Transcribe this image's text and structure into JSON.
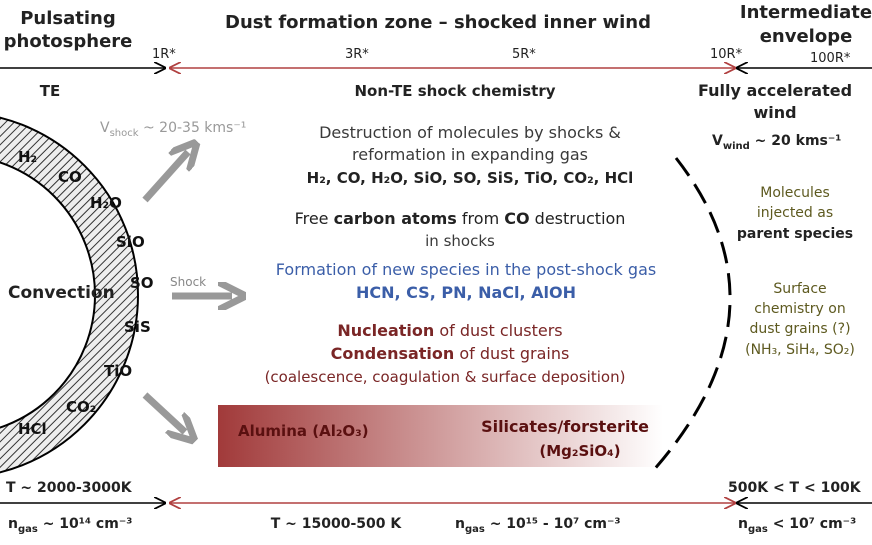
{
  "header": {
    "left": [
      "Pulsating",
      "photosphere"
    ],
    "title": "Dust formation zone – shocked inner wind",
    "right": [
      "Intermediate",
      "envelope"
    ]
  },
  "radii": [
    "1R*",
    "3R*",
    "5R*",
    "10R*",
    "100R*"
  ],
  "zones": {
    "left": "TE",
    "center": "Non-TE shock chemistry",
    "right": [
      "Fully accelerated",
      "wind"
    ]
  },
  "vshock": {
    "v": "V",
    "sub": "shock",
    "rest": " ~ 20-35 kms⁻¹"
  },
  "vwind": {
    "v": "V",
    "sub": "wind",
    "rest": " ~ 20 kms⁻¹"
  },
  "star": {
    "core": "Convection",
    "molecules": [
      "H₂",
      "CO",
      "H₂O",
      "SiO",
      "SO",
      "SiS",
      "TiO",
      "CO₂",
      "HCl"
    ],
    "shock": "Shock"
  },
  "destruction": [
    "Destruction of molecules by shocks &",
    "reformation in expanding gas",
    "H₂, CO, H₂O, SiO, SO, SiS, TiO, CO₂, HCl"
  ],
  "carbon": {
    "line1": [
      "Free ",
      "carbon atoms",
      " from ",
      "CO",
      " destruction"
    ],
    "line2": "in shocks"
  },
  "formation": [
    "Formation of new species in the post-shock gas",
    "HCN, CS, PN, NaCl, AlOH"
  ],
  "dust": {
    "nucleation": [
      "Nucleation",
      " of dust clusters"
    ],
    "condensation": [
      "Condensation",
      " of dust grains"
    ],
    "process": "(coalescence, coagulation & surface deposition)"
  },
  "grains": {
    "alumina": "Alumina (Al₂O₃)",
    "silicates": [
      "Silicates/forsterite",
      "(Mg₂SiO₄)"
    ]
  },
  "right_notes": {
    "injected": [
      "Molecules",
      "injected as",
      "parent species"
    ],
    "surface": [
      "Surface",
      "chemistry on",
      "dust grains (?)",
      "(NH₃, SiH₄, SO₂)"
    ]
  },
  "bottom": {
    "temps": [
      "T ~ 2000-3000K",
      "T ~ 15000-500 K",
      "500K < T < 100K"
    ],
    "densities": [
      {
        "v": "n",
        "sub": "gas",
        "rest": " ~ 10¹⁴ cm⁻³"
      },
      {
        "v": "n",
        "sub": "gas",
        "rest": " ~ 10¹⁵ - 10⁷ cm⁻³"
      },
      {
        "v": "n",
        "sub": "gas",
        "rest": " < 10⁷ cm⁻³"
      }
    ]
  }
}
